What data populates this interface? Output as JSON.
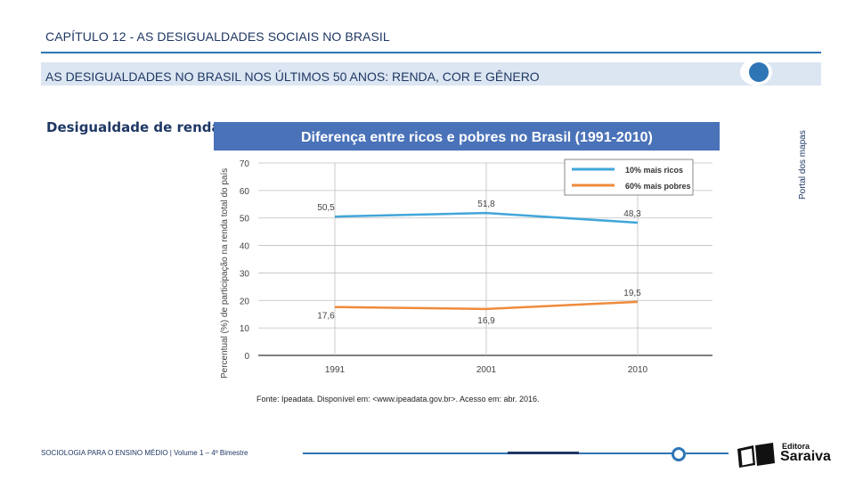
{
  "header": {
    "chapter": "CAPÍTULO 12 - AS DESIGUALDADES SOCIAIS NO BRASIL",
    "subtitle": "AS DESIGUALDADES NO BRASIL NOS ÚLTIMOS 50 ANOS: RENDA, COR E GÊNERO",
    "side_credit": "Portal dos mapas"
  },
  "section": {
    "label": "Desigualdade de renda:"
  },
  "chart_data": {
    "type": "line",
    "title": "Diferença entre ricos e pobres no Brasil (1991-2010)",
    "xlabel": "",
    "ylabel": "Percentual (%) de participação na renda total do país",
    "categories": [
      "1991",
      "2001",
      "2010"
    ],
    "ylim": [
      0,
      70
    ],
    "yticks": [
      0,
      10,
      20,
      30,
      40,
      50,
      60,
      70
    ],
    "grid": true,
    "legend_position": "top-right",
    "series": [
      {
        "name": "10% mais ricos",
        "color": "#41a6d9",
        "values": [
          50.5,
          51.8,
          48.3
        ],
        "labels": [
          "50,5",
          "51,8",
          "48,3"
        ]
      },
      {
        "name": "60% mais pobres",
        "color": "#ef8a3b",
        "values": [
          17.6,
          16.9,
          19.5
        ],
        "labels": [
          "17,6",
          "16,9",
          "19,5"
        ]
      }
    ],
    "title_bar_color": "#4a72b8"
  },
  "source": "Fonte: Ipeadata. Disponível em: <www.ipeadata.gov.br>. Acesso em: abr. 2016.",
  "footer": {
    "text": "SOCIOLOGIA PARA O ENSINO MÉDIO | Volume 1 – 4º Bimestre",
    "logo_top": "Editora",
    "logo_main": "Saraiva"
  },
  "colors": {
    "accent": "#2e75b6",
    "dark": "#1f3864"
  }
}
